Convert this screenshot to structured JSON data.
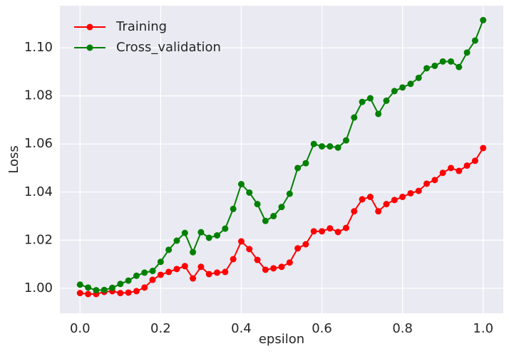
{
  "chart_data": {
    "type": "line",
    "xlabel": "epsilon",
    "ylabel": "Loss",
    "x": [
      0.0,
      0.02,
      0.04,
      0.06,
      0.08,
      0.1,
      0.12,
      0.14,
      0.16,
      0.18,
      0.2,
      0.22,
      0.24,
      0.26,
      0.28,
      0.3,
      0.32,
      0.34,
      0.36,
      0.38,
      0.4,
      0.42,
      0.44,
      0.46,
      0.48,
      0.5,
      0.52,
      0.54,
      0.56,
      0.58,
      0.6,
      0.62,
      0.64,
      0.66,
      0.68,
      0.7,
      0.72,
      0.74,
      0.76,
      0.78,
      0.8,
      0.82,
      0.84,
      0.86,
      0.88,
      0.9,
      0.92,
      0.94,
      0.96,
      0.98,
      1.0
    ],
    "series": [
      {
        "name": "Training",
        "color": "#ff0000",
        "values": [
          0.998,
          0.9976,
          0.9976,
          0.9985,
          0.9988,
          0.998,
          0.9982,
          0.9988,
          1.0003,
          1.0035,
          1.0056,
          1.0068,
          1.008,
          1.0092,
          1.0041,
          1.0089,
          1.0059,
          1.0065,
          1.0068,
          1.0121,
          1.0195,
          1.0163,
          1.0118,
          1.0077,
          1.0083,
          1.0089,
          1.0107,
          1.0166,
          1.0183,
          1.0237,
          1.0237,
          1.0249,
          1.0234,
          1.0251,
          1.032,
          1.037,
          1.038,
          1.032,
          1.035,
          1.0367,
          1.038,
          1.0395,
          1.0405,
          1.0435,
          1.045,
          1.048,
          1.05,
          1.0488,
          1.051,
          1.053,
          1.0583
        ]
      },
      {
        "name": "Cross_validation",
        "color": "#008000",
        "values": [
          1.0015,
          1.0003,
          0.9992,
          0.9993,
          1.0002,
          1.0018,
          1.0032,
          1.0052,
          1.0065,
          1.0072,
          1.011,
          1.016,
          1.0198,
          1.023,
          1.015,
          1.0233,
          1.021,
          1.022,
          1.0248,
          1.033,
          1.0433,
          1.0398,
          1.035,
          1.028,
          1.03,
          1.0338,
          1.0393,
          1.05,
          1.052,
          1.06,
          1.059,
          1.059,
          1.0585,
          1.0615,
          1.071,
          1.0775,
          1.079,
          1.0725,
          1.078,
          1.082,
          1.0835,
          1.085,
          1.0875,
          1.0915,
          1.0925,
          1.0943,
          1.0943,
          1.092,
          1.098,
          1.103,
          1.1115
        ]
      }
    ],
    "xlim": [
      -0.05,
      1.05
    ],
    "ylim": [
      0.9896,
      1.1175
    ],
    "xticks": [
      {
        "value": 0.0,
        "label": "0.0"
      },
      0.2,
      0.4,
      0.6,
      0.8,
      {
        "value": 1.0,
        "label": "1.0"
      }
    ],
    "yticks": [
      {
        "value": 1.0,
        "label": "1.00"
      },
      {
        "value": 1.02,
        "label": "1.02"
      },
      {
        "value": 1.04,
        "label": "1.04"
      },
      {
        "value": 1.06,
        "label": "1.06"
      },
      {
        "value": 1.08,
        "label": "1.08"
      },
      {
        "value": 1.1,
        "label": "1.10"
      }
    ],
    "grid": true,
    "legend": "upper left"
  }
}
